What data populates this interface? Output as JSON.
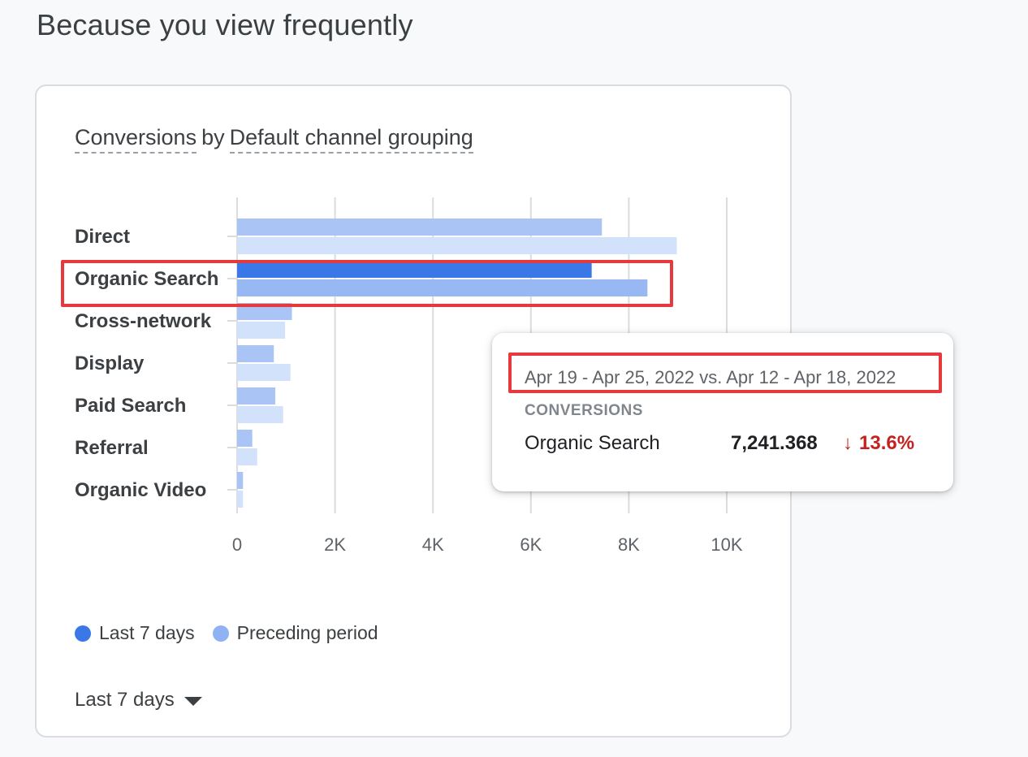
{
  "header": {
    "section_title": "Because you view frequently"
  },
  "card": {
    "metric": "Conversions",
    "by": "by",
    "dimension": "Default channel grouping",
    "legend": [
      {
        "label": "Last 7 days",
        "color": "#3b78e7"
      },
      {
        "label": "Preceding period",
        "color": "#8fb3f2"
      }
    ],
    "period_select": "Last 7 days"
  },
  "chart_data": {
    "type": "bar",
    "orientation": "horizontal",
    "categories": [
      "Direct",
      "Organic Search",
      "Cross-network",
      "Display",
      "Paid Search",
      "Referral",
      "Organic Video"
    ],
    "series": [
      {
        "name": "Last 7 days",
        "values": [
          7450,
          7241.368,
          1120,
          750,
          780,
          310,
          120
        ]
      },
      {
        "name": "Preceding period",
        "values": [
          8980,
          8380,
          980,
          1090,
          940,
          410,
          120
        ]
      }
    ],
    "xlim": [
      0,
      10000
    ],
    "x_ticks": [
      "0",
      "2K",
      "4K",
      "6K",
      "8K",
      "10K"
    ],
    "x_tick_values": [
      0,
      2000,
      4000,
      6000,
      8000,
      10000
    ],
    "grid": true,
    "highlighted_category": "Organic Search",
    "colors": {
      "current": "#aac4f5",
      "previous": "#d3e2fb",
      "current_highlight": "#3b78e7",
      "previous_highlight": "#98b8f3"
    }
  },
  "tooltip": {
    "date_range": "Apr 19 - Apr 25, 2022 vs. Apr 12 - Apr 18, 2022",
    "metric_label": "CONVERSIONS",
    "row": {
      "name": "Organic Search",
      "value": "7,241.368",
      "change_arrow": "↓",
      "change": "13.6%",
      "change_color": "#c5221f"
    }
  },
  "annotations": {
    "highlight_color": "#e5393e"
  }
}
